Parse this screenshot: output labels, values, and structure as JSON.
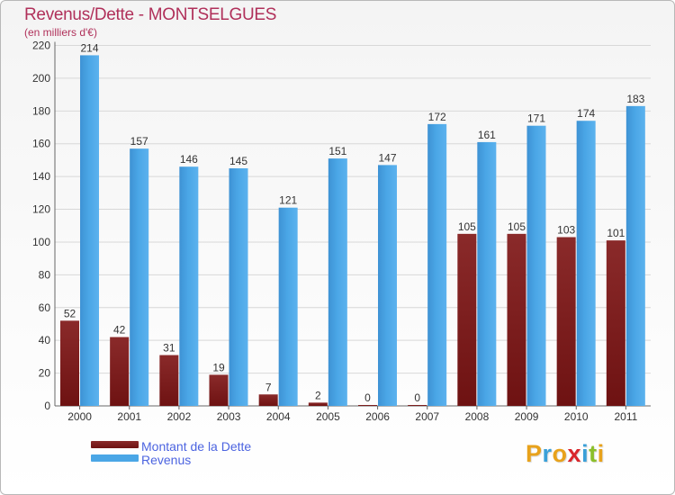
{
  "colors": {
    "debt": "#6e1212",
    "revenue": "#4aa6e6",
    "title": "#b0305a",
    "legend_text": "#4c64e0"
  },
  "logo": {
    "letters": [
      "P",
      "r",
      "o",
      "x",
      "i",
      "t",
      "i"
    ],
    "colors": [
      "#e8a21b",
      "#3aa0d8",
      "#e8a21b",
      "#d9262b",
      "#3aa0d8",
      "#8bbf2a",
      "#e8a21b"
    ]
  },
  "chart_data": {
    "type": "bar",
    "title": "Revenus/Dette - MONTSELGUES",
    "subtitle": "(en milliers d'€)",
    "categories": [
      "2000",
      "2001",
      "2002",
      "2003",
      "2004",
      "2005",
      "2006",
      "2007",
      "2008",
      "2009",
      "2010",
      "2011"
    ],
    "series": [
      {
        "name": "Montant de la Dette",
        "values": [
          52,
          42,
          31,
          19,
          7,
          2,
          0,
          0,
          105,
          105,
          103,
          101
        ]
      },
      {
        "name": "Revenus",
        "values": [
          214,
          157,
          146,
          145,
          121,
          151,
          147,
          172,
          161,
          171,
          174,
          183
        ]
      }
    ],
    "ylim": [
      0,
      220
    ],
    "yticks": [
      0,
      20,
      40,
      60,
      80,
      100,
      120,
      140,
      160,
      180,
      200,
      220
    ],
    "grid": true,
    "legend_position": "bottom-left"
  }
}
